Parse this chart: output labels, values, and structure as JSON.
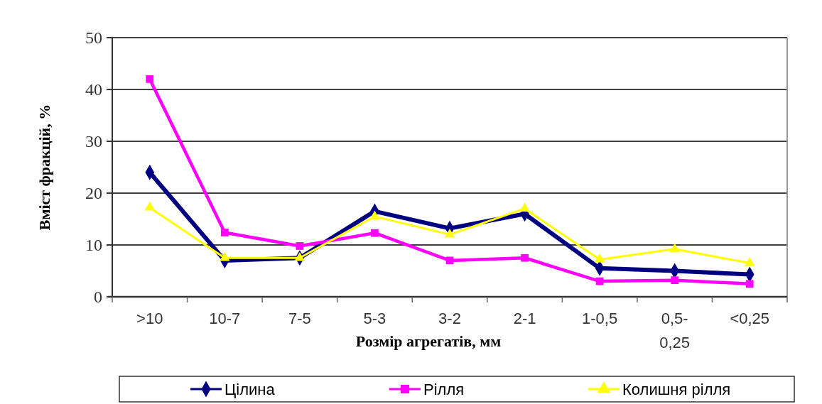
{
  "chart_data": {
    "type": "line",
    "xlabel": "Розмір агрегатів, мм",
    "ylabel": "Вміст фракцій,  %",
    "categories": [
      ">10",
      "10-7",
      "7-5",
      "5-3",
      "3-2",
      "2-1",
      "1-0,5",
      "0,5-0,25",
      "<0,25"
    ],
    "series": [
      {
        "name": "Цілина",
        "color": "#000080",
        "marker": "diamond",
        "values": [
          24,
          7,
          7.5,
          16.5,
          13.2,
          16,
          5.5,
          5,
          4.3
        ]
      },
      {
        "name": "Рілля",
        "color": "#ff00ff",
        "marker": "square",
        "values": [
          42,
          12.4,
          9.8,
          12.3,
          7,
          7.5,
          3,
          3.2,
          2.5
        ]
      },
      {
        "name": "Колишня рілля",
        "color": "#ffff00",
        "marker": "triangle",
        "values": [
          17.2,
          7.5,
          7.5,
          15.5,
          12,
          17,
          7.2,
          9.2,
          6.5
        ]
      }
    ],
    "ylim": [
      0,
      50
    ],
    "yticks": [
      0,
      10,
      20,
      30,
      40,
      50
    ],
    "grid": "y",
    "legend": "bottom",
    "line_style": "solid"
  }
}
